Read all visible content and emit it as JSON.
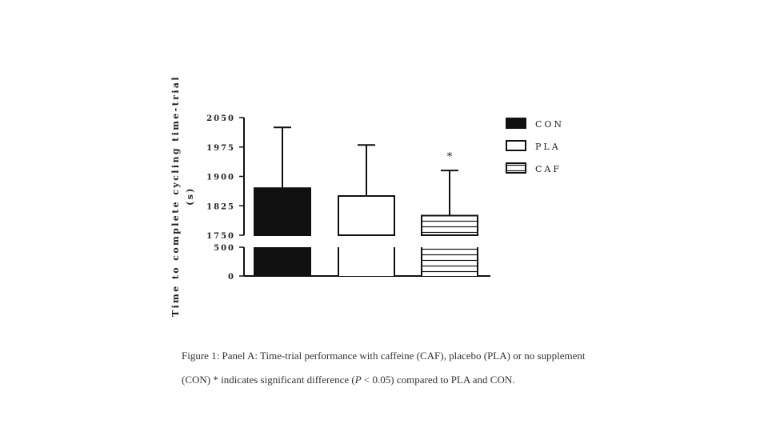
{
  "chart_data": {
    "type": "bar",
    "ylabel_line1": "Time to complete cycling time-trial",
    "ylabel_line2": "(s)",
    "categories": [
      "CON",
      "PLA",
      "CAF"
    ],
    "series": [
      {
        "values": [
          1870,
          1850,
          1800
        ],
        "errors": [
          155,
          130,
          115
        ]
      }
    ],
    "fills": [
      "solid-black",
      "white",
      "horizontal-stripes"
    ],
    "ylim": [
      0,
      2050
    ],
    "axis_break": {
      "lower_segment": [
        0,
        500
      ],
      "upper_segment": [
        1750,
        2050
      ]
    },
    "yticks": [
      "0",
      "500",
      "1750",
      "1825",
      "1900",
      "1975",
      "2050"
    ],
    "legend": [
      "CON",
      "PLA",
      "CAF"
    ],
    "legend_position": "right",
    "annotations": [
      {
        "category": "CAF",
        "text": "*"
      }
    ],
    "grid": false
  },
  "caption": {
    "line1": "Figure 1: Panel A: Time-trial performance with caffeine (CAF), placebo (PLA) or no supplement",
    "line2_a": "(CON) * indicates significant difference (",
    "line2_p": "P",
    "line2_b": " < 0.05) compared to PLA and CON."
  },
  "colors": {
    "ink": "#111111",
    "background": "#ffffff"
  }
}
